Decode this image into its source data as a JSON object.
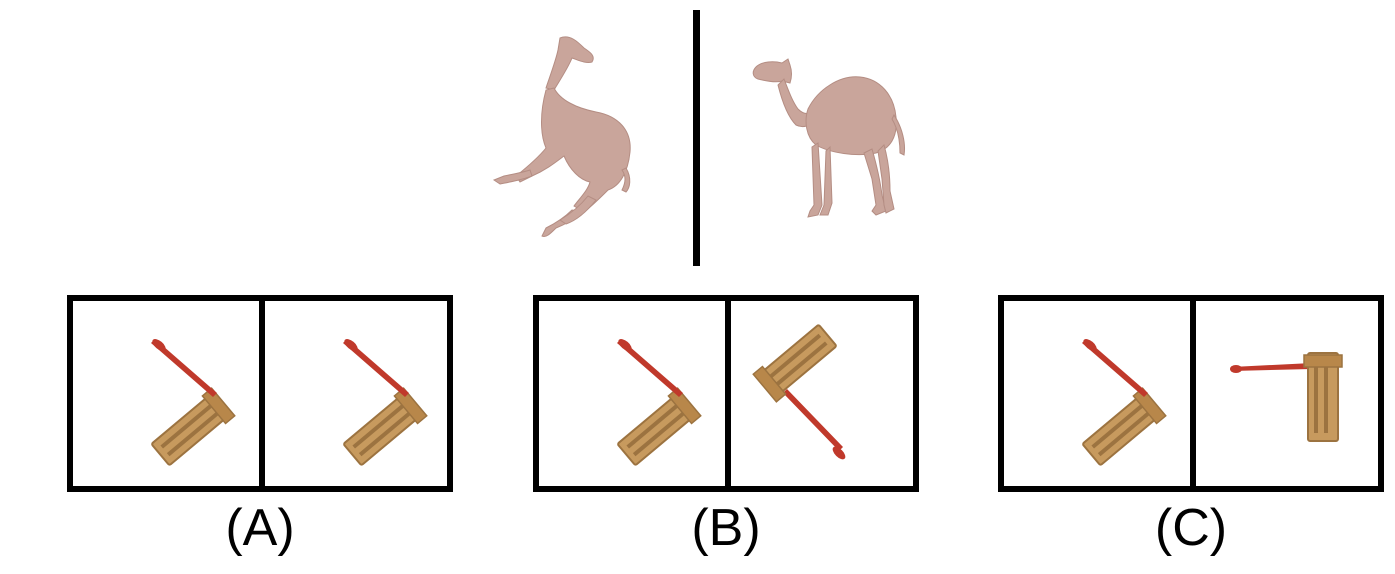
{
  "options": [
    {
      "label": "(A)"
    },
    {
      "label": "(B)"
    },
    {
      "label": "(C)"
    }
  ],
  "colors": {
    "camel": "#c9a59b",
    "rattle_wood": "#c79a5e",
    "rattle_wood_dark": "#9c7340",
    "rattle_handle": "#c0392b",
    "frame": "#000000"
  }
}
